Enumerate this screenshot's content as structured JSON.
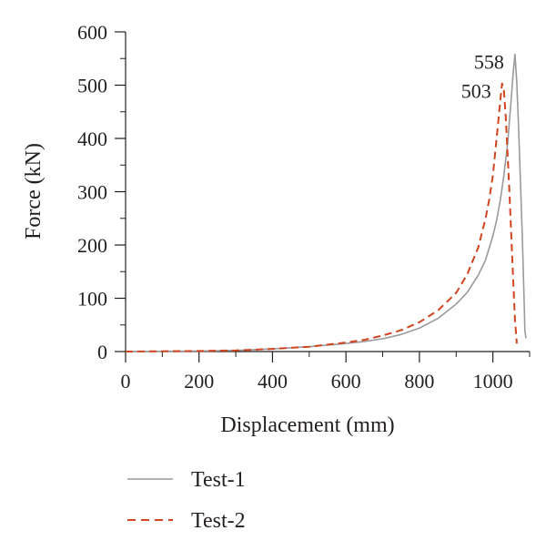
{
  "chart_data": {
    "type": "line",
    "title": "",
    "xlabel": "Displacement (mm)",
    "ylabel": "Force (kN)",
    "xlim": [
      0,
      1100
    ],
    "ylim": [
      0,
      600
    ],
    "x_ticks": [
      0,
      200,
      400,
      600,
      800,
      1000
    ],
    "y_ticks": [
      0,
      100,
      200,
      300,
      400,
      500,
      600
    ],
    "x_tick_labels": [
      "0",
      "200",
      "400",
      "600",
      "800",
      "1000"
    ],
    "y_tick_labels": [
      "0",
      "100",
      "200",
      "300",
      "400",
      "500",
      "600"
    ],
    "grid": false,
    "legend_position": "bottom-left",
    "series": [
      {
        "name": "Test-1",
        "color": "#9a9a9a",
        "dash": "solid",
        "x": [
          0,
          200,
          300,
          400,
          500,
          600,
          650,
          700,
          750,
          800,
          850,
          900,
          930,
          960,
          980,
          1000,
          1010,
          1020,
          1030,
          1040,
          1050,
          1055,
          1060,
          1065,
          1070,
          1075,
          1080,
          1085,
          1087,
          1090
        ],
        "y": [
          0,
          1,
          2,
          5,
          9,
          15,
          19,
          24,
          32,
          44,
          62,
          89,
          111,
          143,
          172,
          217,
          246,
          283,
          330,
          390,
          475,
          520,
          558,
          505,
          420,
          320,
          220,
          100,
          40,
          25
        ]
      },
      {
        "name": "Test-2",
        "color": "#d2431f",
        "dash": "dashed",
        "x": [
          0,
          200,
          300,
          400,
          500,
          600,
          650,
          700,
          750,
          800,
          850,
          900,
          930,
          960,
          980,
          990,
          1000,
          1010,
          1020,
          1025,
          1030,
          1035,
          1040,
          1045,
          1050,
          1055,
          1060,
          1065
        ],
        "y": [
          0,
          1,
          2,
          5,
          9,
          17,
          22,
          30,
          40,
          55,
          77,
          110,
          145,
          195,
          250,
          285,
          330,
          400,
          470,
          503,
          490,
          440,
          370,
          300,
          220,
          140,
          60,
          15
        ]
      }
    ],
    "annotations": [
      {
        "text": "558",
        "x": 1060,
        "y": 558
      },
      {
        "text": "503",
        "x": 1025,
        "y": 503
      }
    ]
  }
}
